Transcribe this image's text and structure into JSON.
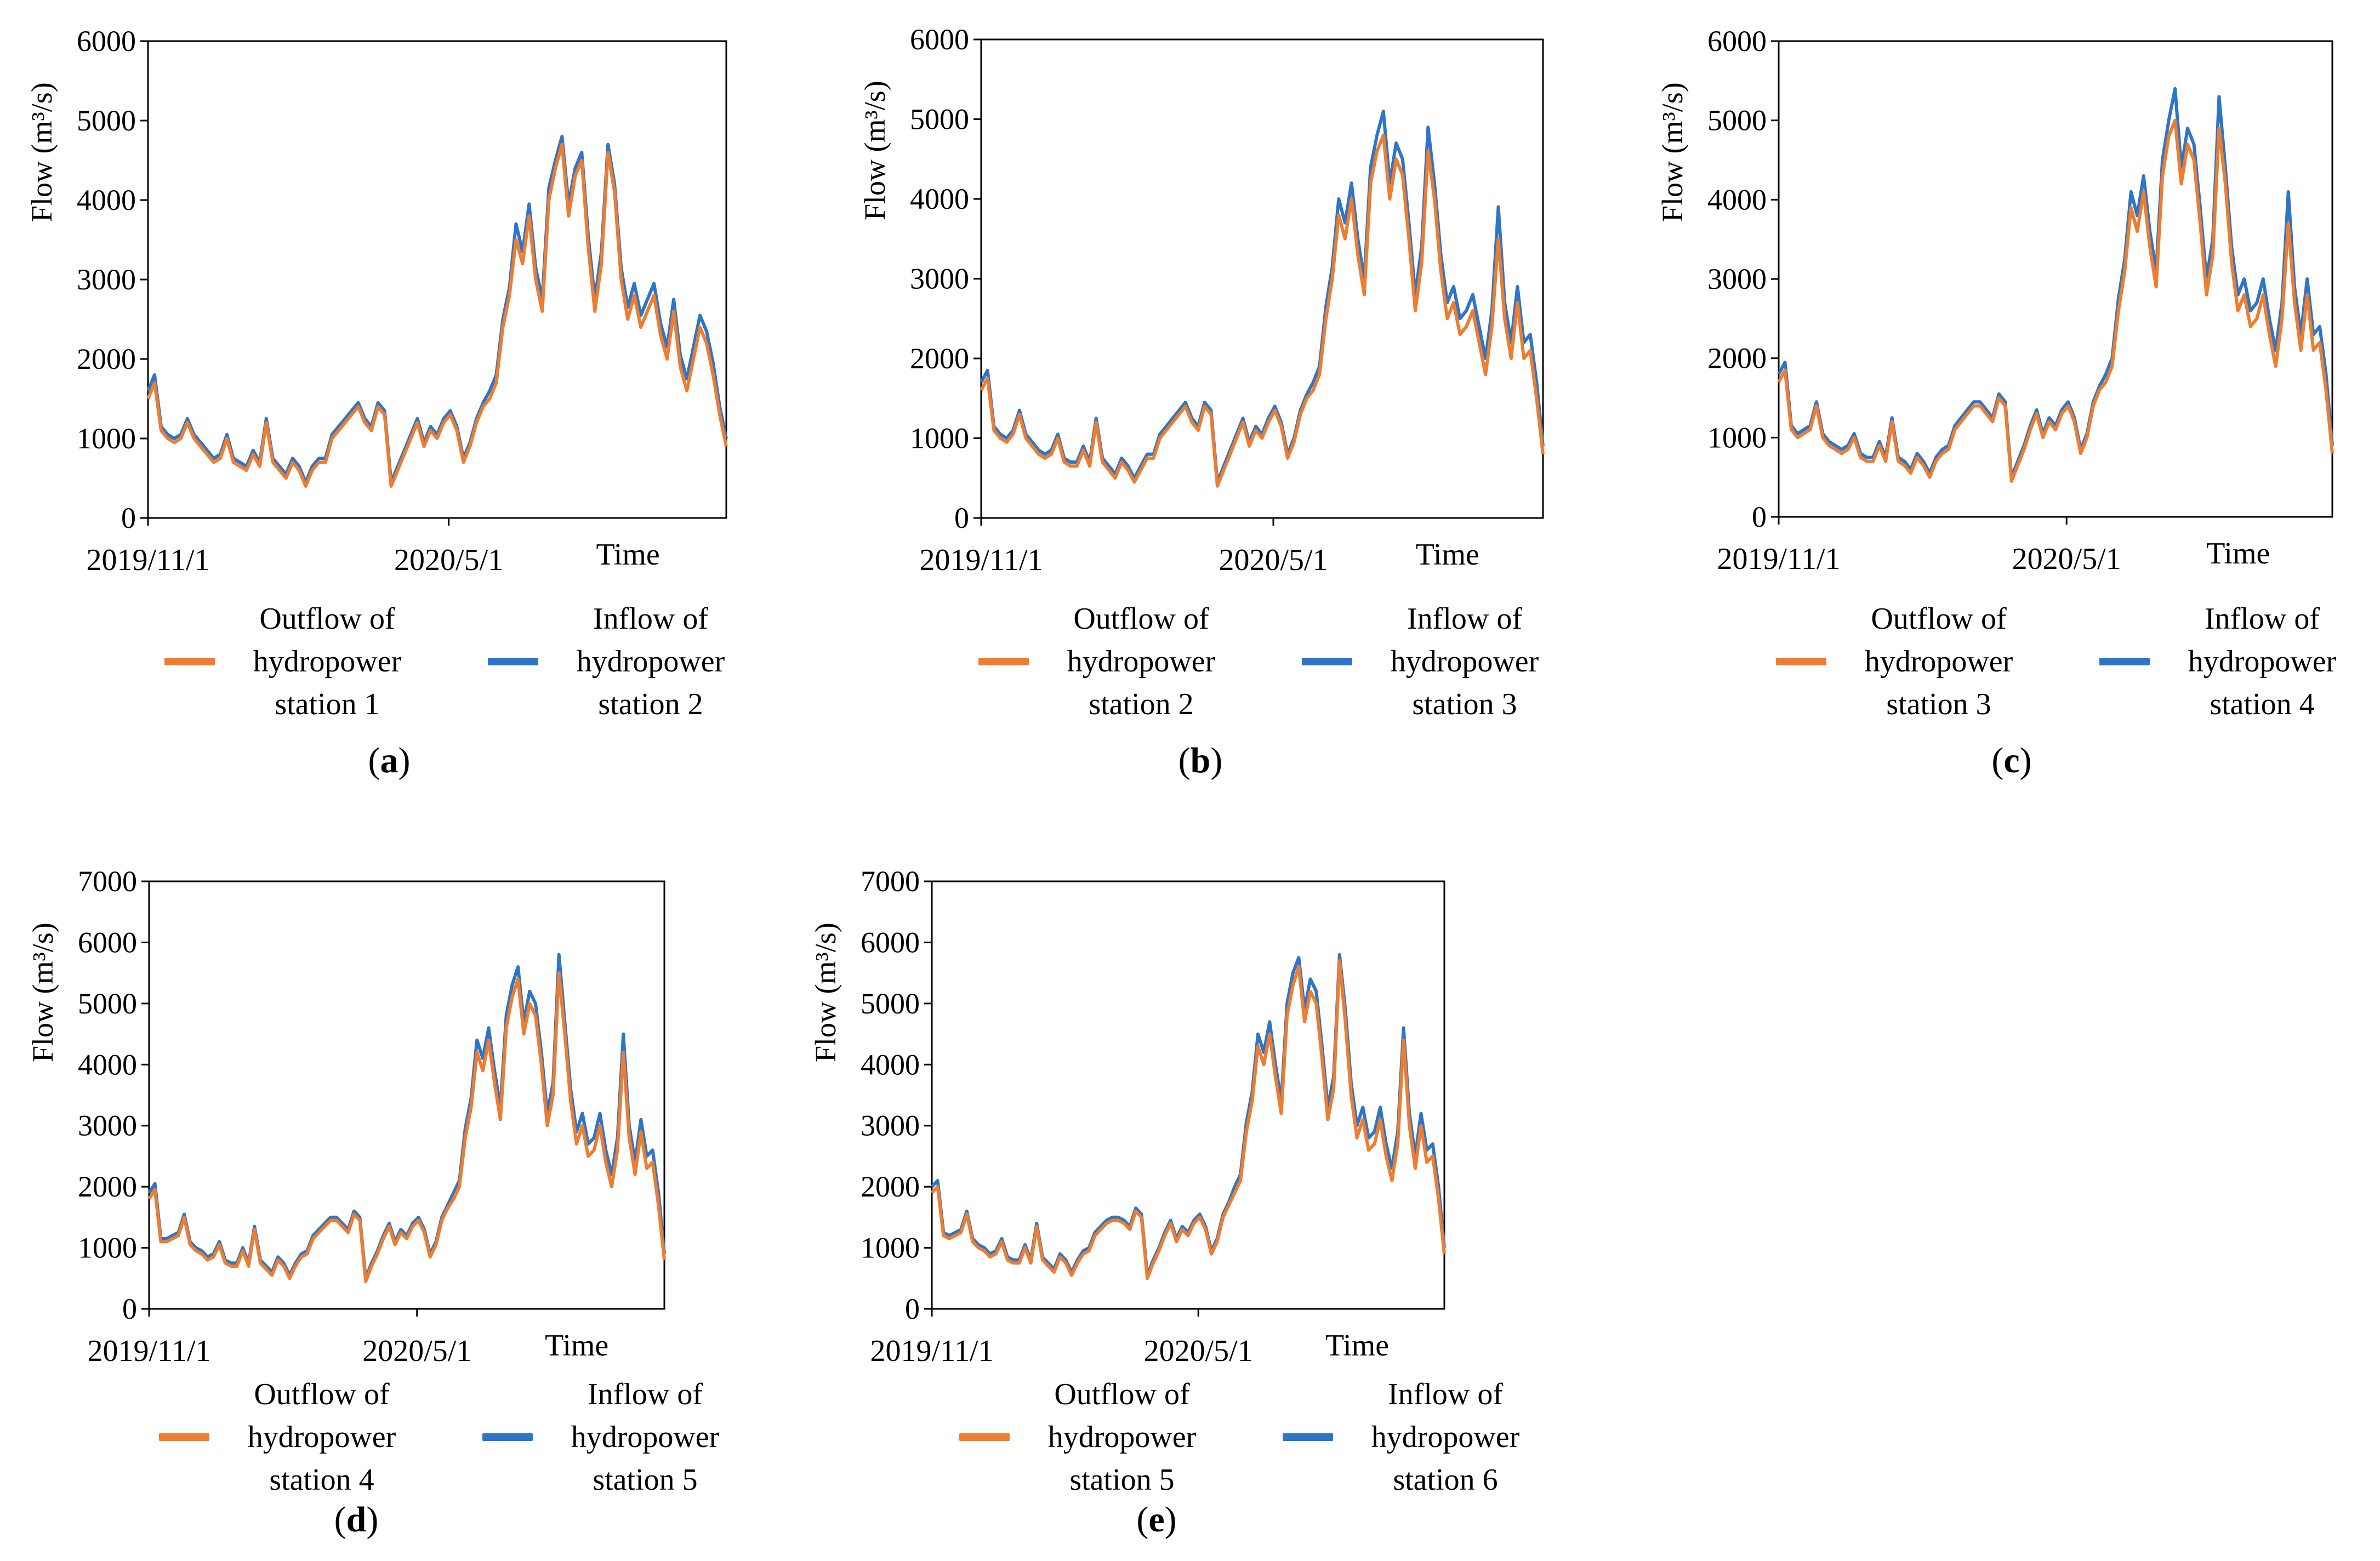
{
  "figure": {
    "series_colors": {
      "outflow": "#ED7D31",
      "inflow": "#2E75C8"
    },
    "y_axis_title": "Flow",
    "y_axis_unit": "(m³/s)",
    "x_axis_title": "Time"
  },
  "chart_data": [
    {
      "type": "line",
      "panel": "a",
      "caption_letter": "a",
      "xlabel": "Time",
      "ylabel": "Flow (m³/s)",
      "x_ticks": [
        "2019/11/1",
        "2020/5/1"
      ],
      "ylim": [
        0,
        6000
      ],
      "y_ticks": [
        0,
        1000,
        2000,
        3000,
        4000,
        5000,
        6000
      ],
      "grid": false,
      "legend_position": "bottom",
      "series": [
        {
          "name": "Outflow of hydropower station 1",
          "color": "#ED7D31",
          "values": [
            1500,
            1700,
            1100,
            1000,
            950,
            1000,
            1200,
            1000,
            900,
            800,
            700,
            750,
            1000,
            700,
            650,
            600,
            800,
            650,
            1200,
            700,
            600,
            500,
            700,
            600,
            400,
            600,
            700,
            700,
            1000,
            1100,
            1200,
            1300,
            1400,
            1200,
            1100,
            1400,
            1300,
            400,
            600,
            800,
            1000,
            1200,
            900,
            1100,
            1000,
            1200,
            1300,
            1100,
            700,
            900,
            1200,
            1400,
            1500,
            1700,
            2400,
            2800,
            3500,
            3200,
            3800,
            3000,
            2600,
            4000,
            4400,
            4700,
            3800,
            4300,
            4500,
            3400,
            2600,
            3200,
            4600,
            4100,
            3000,
            2500,
            2800,
            2400,
            2600,
            2800,
            2300,
            2000,
            2600,
            1900,
            1600,
            2000,
            2400,
            2200,
            1800,
            1300,
            900
          ]
        },
        {
          "name": "Inflow of hydropower station 2",
          "color": "#2E75C8",
          "values": [
            1600,
            1800,
            1150,
            1050,
            1000,
            1050,
            1250,
            1050,
            950,
            850,
            750,
            800,
            1050,
            750,
            700,
            650,
            850,
            700,
            1250,
            750,
            650,
            550,
            750,
            650,
            450,
            650,
            750,
            750,
            1050,
            1150,
            1250,
            1350,
            1450,
            1250,
            1150,
            1450,
            1350,
            450,
            650,
            850,
            1050,
            1250,
            950,
            1150,
            1050,
            1250,
            1350,
            1150,
            750,
            950,
            1250,
            1450,
            1600,
            1800,
            2500,
            2900,
            3700,
            3350,
            3950,
            3150,
            2750,
            4150,
            4500,
            4800,
            3950,
            4400,
            4600,
            3550,
            2750,
            3350,
            4700,
            4200,
            3150,
            2650,
            2950,
            2550,
            2750,
            2950,
            2450,
            2150,
            2750,
            2050,
            1750,
            2150,
            2550,
            2350,
            1950,
            1400,
            1000
          ]
        }
      ]
    },
    {
      "type": "line",
      "panel": "b",
      "caption_letter": "b",
      "xlabel": "Time",
      "ylabel": "Flow (m³/s)",
      "x_ticks": [
        "2019/11/1",
        "2020/5/1"
      ],
      "ylim": [
        0,
        6000
      ],
      "y_ticks": [
        0,
        1000,
        2000,
        3000,
        4000,
        5000,
        6000
      ],
      "grid": false,
      "legend_position": "bottom",
      "series": [
        {
          "name": "Outflow of hydropower station 2",
          "color": "#ED7D31",
          "values": [
            1600,
            1750,
            1100,
            1000,
            950,
            1050,
            1300,
            1000,
            900,
            800,
            750,
            800,
            1000,
            700,
            650,
            650,
            850,
            650,
            1200,
            700,
            600,
            500,
            700,
            600,
            450,
            600,
            750,
            750,
            1000,
            1100,
            1200,
            1300,
            1400,
            1200,
            1100,
            1400,
            1300,
            400,
            600,
            800,
            1000,
            1200,
            900,
            1100,
            1000,
            1200,
            1350,
            1150,
            750,
            950,
            1300,
            1500,
            1600,
            1800,
            2500,
            3000,
            3800,
            3500,
            4000,
            3300,
            2800,
            4200,
            4600,
            4800,
            4000,
            4500,
            4300,
            3500,
            2600,
            3200,
            4600,
            4000,
            3100,
            2500,
            2700,
            2300,
            2400,
            2600,
            2200,
            1800,
            2400,
            3500,
            2500,
            2000,
            2700,
            2000,
            2100,
            1500,
            800
          ]
        },
        {
          "name": "Inflow of hydropower station 3",
          "color": "#2E75C8",
          "values": [
            1700,
            1850,
            1150,
            1050,
            1000,
            1100,
            1350,
            1050,
            950,
            850,
            800,
            850,
            1050,
            750,
            700,
            700,
            900,
            700,
            1250,
            750,
            650,
            550,
            750,
            650,
            500,
            650,
            800,
            800,
            1050,
            1150,
            1250,
            1350,
            1450,
            1250,
            1150,
            1450,
            1350,
            450,
            650,
            850,
            1050,
            1250,
            950,
            1150,
            1050,
            1250,
            1400,
            1200,
            800,
            1000,
            1350,
            1550,
            1700,
            1900,
            2650,
            3150,
            4000,
            3700,
            4200,
            3500,
            3000,
            4400,
            4800,
            5100,
            4200,
            4700,
            4500,
            3700,
            2800,
            3400,
            4900,
            4200,
            3300,
            2700,
            2900,
            2500,
            2600,
            2800,
            2400,
            2000,
            2600,
            3900,
            2700,
            2200,
            2900,
            2200,
            2300,
            1700,
            900
          ]
        }
      ]
    },
    {
      "type": "line",
      "panel": "c",
      "caption_letter": "c",
      "xlabel": "Time",
      "ylabel": "Flow (m³/s)",
      "x_ticks": [
        "2019/11/1",
        "2020/5/1"
      ],
      "ylim": [
        0,
        6000
      ],
      "y_ticks": [
        0,
        1000,
        2000,
        3000,
        4000,
        5000,
        6000
      ],
      "grid": false,
      "legend_position": "bottom",
      "series": [
        {
          "name": "Outflow of hydropower station 3",
          "color": "#ED7D31",
          "values": [
            1700,
            1850,
            1100,
            1000,
            1050,
            1100,
            1400,
            1000,
            900,
            850,
            800,
            850,
            1000,
            750,
            700,
            700,
            900,
            700,
            1200,
            700,
            650,
            550,
            750,
            650,
            500,
            700,
            800,
            850,
            1100,
            1200,
            1300,
            1400,
            1400,
            1300,
            1200,
            1500,
            1400,
            450,
            650,
            850,
            1100,
            1300,
            1000,
            1200,
            1100,
            1300,
            1400,
            1200,
            800,
            1000,
            1400,
            1600,
            1700,
            1900,
            2600,
            3100,
            3900,
            3600,
            4100,
            3400,
            2900,
            4300,
            4800,
            5000,
            4200,
            4700,
            4500,
            3700,
            2800,
            3300,
            4900,
            4200,
            3200,
            2600,
            2800,
            2400,
            2500,
            2800,
            2300,
            1900,
            2500,
            3700,
            2700,
            2100,
            2800,
            2100,
            2200,
            1600,
            800
          ]
        },
        {
          "name": "Inflow of hydropower station 4",
          "color": "#2E75C8",
          "values": [
            1800,
            1950,
            1150,
            1050,
            1100,
            1150,
            1450,
            1050,
            950,
            900,
            850,
            900,
            1050,
            800,
            750,
            750,
            950,
            750,
            1250,
            750,
            700,
            600,
            800,
            700,
            550,
            750,
            850,
            900,
            1150,
            1250,
            1350,
            1450,
            1450,
            1350,
            1250,
            1550,
            1450,
            500,
            700,
            900,
            1150,
            1350,
            1050,
            1250,
            1150,
            1350,
            1450,
            1250,
            850,
            1050,
            1450,
            1650,
            1800,
            2000,
            2750,
            3250,
            4100,
            3800,
            4300,
            3600,
            3100,
            4500,
            5000,
            5400,
            4400,
            4900,
            4700,
            3900,
            3000,
            3500,
            5300,
            4400,
            3400,
            2800,
            3000,
            2600,
            2700,
            3000,
            2500,
            2100,
            2700,
            4100,
            2900,
            2300,
            3000,
            2300,
            2400,
            1800,
            900
          ]
        }
      ]
    },
    {
      "type": "line",
      "panel": "d",
      "caption_letter": "d",
      "xlabel": "Time",
      "ylabel": "Flow (m³/s)",
      "x_ticks": [
        "2019/11/1",
        "2020/5/1"
      ],
      "ylim": [
        0,
        7000
      ],
      "y_ticks": [
        0,
        1000,
        2000,
        3000,
        4000,
        5000,
        6000,
        7000
      ],
      "grid": false,
      "legend_position": "bottom",
      "series": [
        {
          "name": "Outflow of hydropower station 4",
          "color": "#ED7D31",
          "values": [
            1800,
            1950,
            1100,
            1100,
            1150,
            1200,
            1500,
            1050,
            950,
            900,
            800,
            850,
            1050,
            750,
            700,
            700,
            950,
            700,
            1300,
            750,
            650,
            550,
            800,
            700,
            500,
            700,
            850,
            900,
            1150,
            1250,
            1350,
            1450,
            1450,
            1350,
            1250,
            1550,
            1450,
            450,
            700,
            900,
            1150,
            1350,
            1050,
            1250,
            1150,
            1350,
            1450,
            1250,
            850,
            1050,
            1450,
            1650,
            1800,
            2000,
            2800,
            3300,
            4200,
            3900,
            4400,
            3700,
            3100,
            4600,
            5100,
            5400,
            4500,
            5000,
            4800,
            4000,
            3000,
            3500,
            5500,
            4500,
            3400,
            2700,
            3000,
            2500,
            2600,
            3000,
            2400,
            2000,
            2600,
            4200,
            2800,
            2200,
            2900,
            2300,
            2400,
            1700,
            800
          ]
        },
        {
          "name": "Inflow of hydropower station 5",
          "color": "#2E75C8",
          "values": [
            1900,
            2050,
            1150,
            1150,
            1200,
            1250,
            1550,
            1100,
            1000,
            950,
            850,
            900,
            1100,
            800,
            750,
            750,
            1000,
            750,
            1350,
            800,
            700,
            600,
            850,
            750,
            550,
            750,
            900,
            950,
            1200,
            1300,
            1400,
            1500,
            1500,
            1400,
            1300,
            1600,
            1500,
            500,
            750,
            950,
            1200,
            1400,
            1100,
            1300,
            1200,
            1400,
            1500,
            1300,
            900,
            1100,
            1500,
            1700,
            1900,
            2100,
            2950,
            3450,
            4400,
            4100,
            4600,
            3900,
            3300,
            4800,
            5300,
            5600,
            4700,
            5200,
            5000,
            4200,
            3200,
            3700,
            5800,
            4700,
            3600,
            2900,
            3200,
            2700,
            2800,
            3200,
            2600,
            2200,
            2800,
            4500,
            3000,
            2400,
            3100,
            2500,
            2600,
            1900,
            900
          ]
        }
      ]
    },
    {
      "type": "line",
      "panel": "e",
      "caption_letter": "e",
      "xlabel": "Time",
      "ylabel": "Flow (m³/s)",
      "x_ticks": [
        "2019/11/1",
        "2020/5/1"
      ],
      "ylim": [
        0,
        7000
      ],
      "y_ticks": [
        0,
        1000,
        2000,
        3000,
        4000,
        5000,
        6000,
        7000
      ],
      "grid": false,
      "legend_position": "bottom",
      "series": [
        {
          "name": "Outflow of hydropower station 5",
          "color": "#ED7D31",
          "values": [
            1900,
            2000,
            1200,
            1150,
            1200,
            1250,
            1550,
            1100,
            1000,
            950,
            850,
            900,
            1100,
            800,
            750,
            750,
            1000,
            750,
            1350,
            800,
            700,
            600,
            850,
            750,
            550,
            750,
            900,
            950,
            1200,
            1300,
            1400,
            1450,
            1450,
            1400,
            1300,
            1600,
            1500,
            500,
            750,
            950,
            1200,
            1400,
            1100,
            1300,
            1200,
            1400,
            1500,
            1300,
            900,
            1100,
            1500,
            1700,
            1900,
            2100,
            2900,
            3400,
            4300,
            4000,
            4500,
            3800,
            3200,
            4800,
            5300,
            5600,
            4700,
            5200,
            5000,
            4100,
            3100,
            3600,
            5700,
            4700,
            3500,
            2800,
            3100,
            2600,
            2700,
            3100,
            2500,
            2100,
            2700,
            4400,
            3000,
            2300,
            3000,
            2400,
            2500,
            1800,
            900
          ]
        },
        {
          "name": "Inflow of hydropower station 6",
          "color": "#2E75C8",
          "values": [
            2000,
            2100,
            1250,
            1200,
            1250,
            1300,
            1600,
            1150,
            1050,
            1000,
            900,
            950,
            1150,
            850,
            800,
            800,
            1050,
            800,
            1400,
            850,
            750,
            650,
            900,
            800,
            600,
            800,
            950,
            1000,
            1250,
            1350,
            1450,
            1500,
            1500,
            1450,
            1350,
            1650,
            1550,
            550,
            800,
            1000,
            1250,
            1450,
            1150,
            1350,
            1250,
            1450,
            1550,
            1350,
            950,
            1150,
            1550,
            1750,
            2000,
            2200,
            3050,
            3550,
            4500,
            4200,
            4700,
            4000,
            3400,
            5000,
            5500,
            5750,
            4900,
            5400,
            5200,
            4300,
            3300,
            3800,
            5800,
            4900,
            3700,
            3000,
            3300,
            2800,
            2900,
            3300,
            2700,
            2300,
            2900,
            4600,
            3200,
            2500,
            3200,
            2600,
            2700,
            2000,
            1000
          ]
        }
      ]
    }
  ]
}
